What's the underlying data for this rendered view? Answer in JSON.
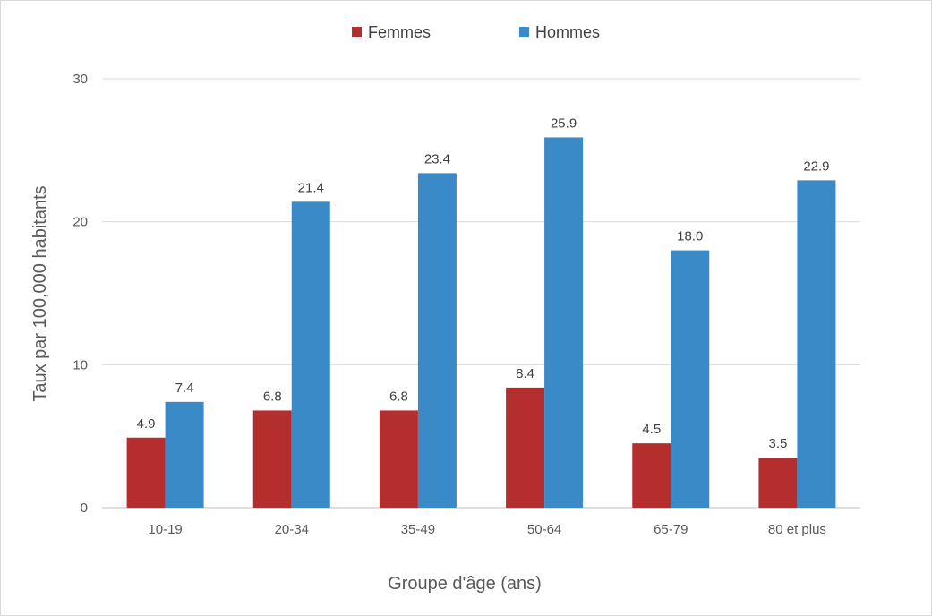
{
  "chart_data": {
    "type": "bar",
    "categories": [
      "10-19",
      "20-34",
      "35-49",
      "50-64",
      "65-79",
      "80 et plus"
    ],
    "series": [
      {
        "name": "Femmes",
        "color": "#b52e2e",
        "values": [
          4.9,
          6.8,
          6.8,
          8.4,
          4.5,
          3.5
        ],
        "labels": [
          "4.9",
          "6.8",
          "6.8",
          "8.4",
          "4.5",
          "3.5"
        ]
      },
      {
        "name": "Hommes",
        "color": "#3a8ac8",
        "values": [
          7.4,
          21.4,
          23.4,
          25.9,
          18.0,
          22.9
        ],
        "labels": [
          "7.4",
          "21.4",
          "23.4",
          "25.9",
          "18.0",
          "22.9"
        ]
      }
    ],
    "xlabel": "Groupe d'âge (ans)",
    "ylabel": "Taux par 100,000 habitants",
    "ylim": [
      0,
      30
    ],
    "yticks": [
      "0",
      "10",
      "20",
      "30"
    ],
    "grid": true,
    "legend_position": "top-center"
  }
}
